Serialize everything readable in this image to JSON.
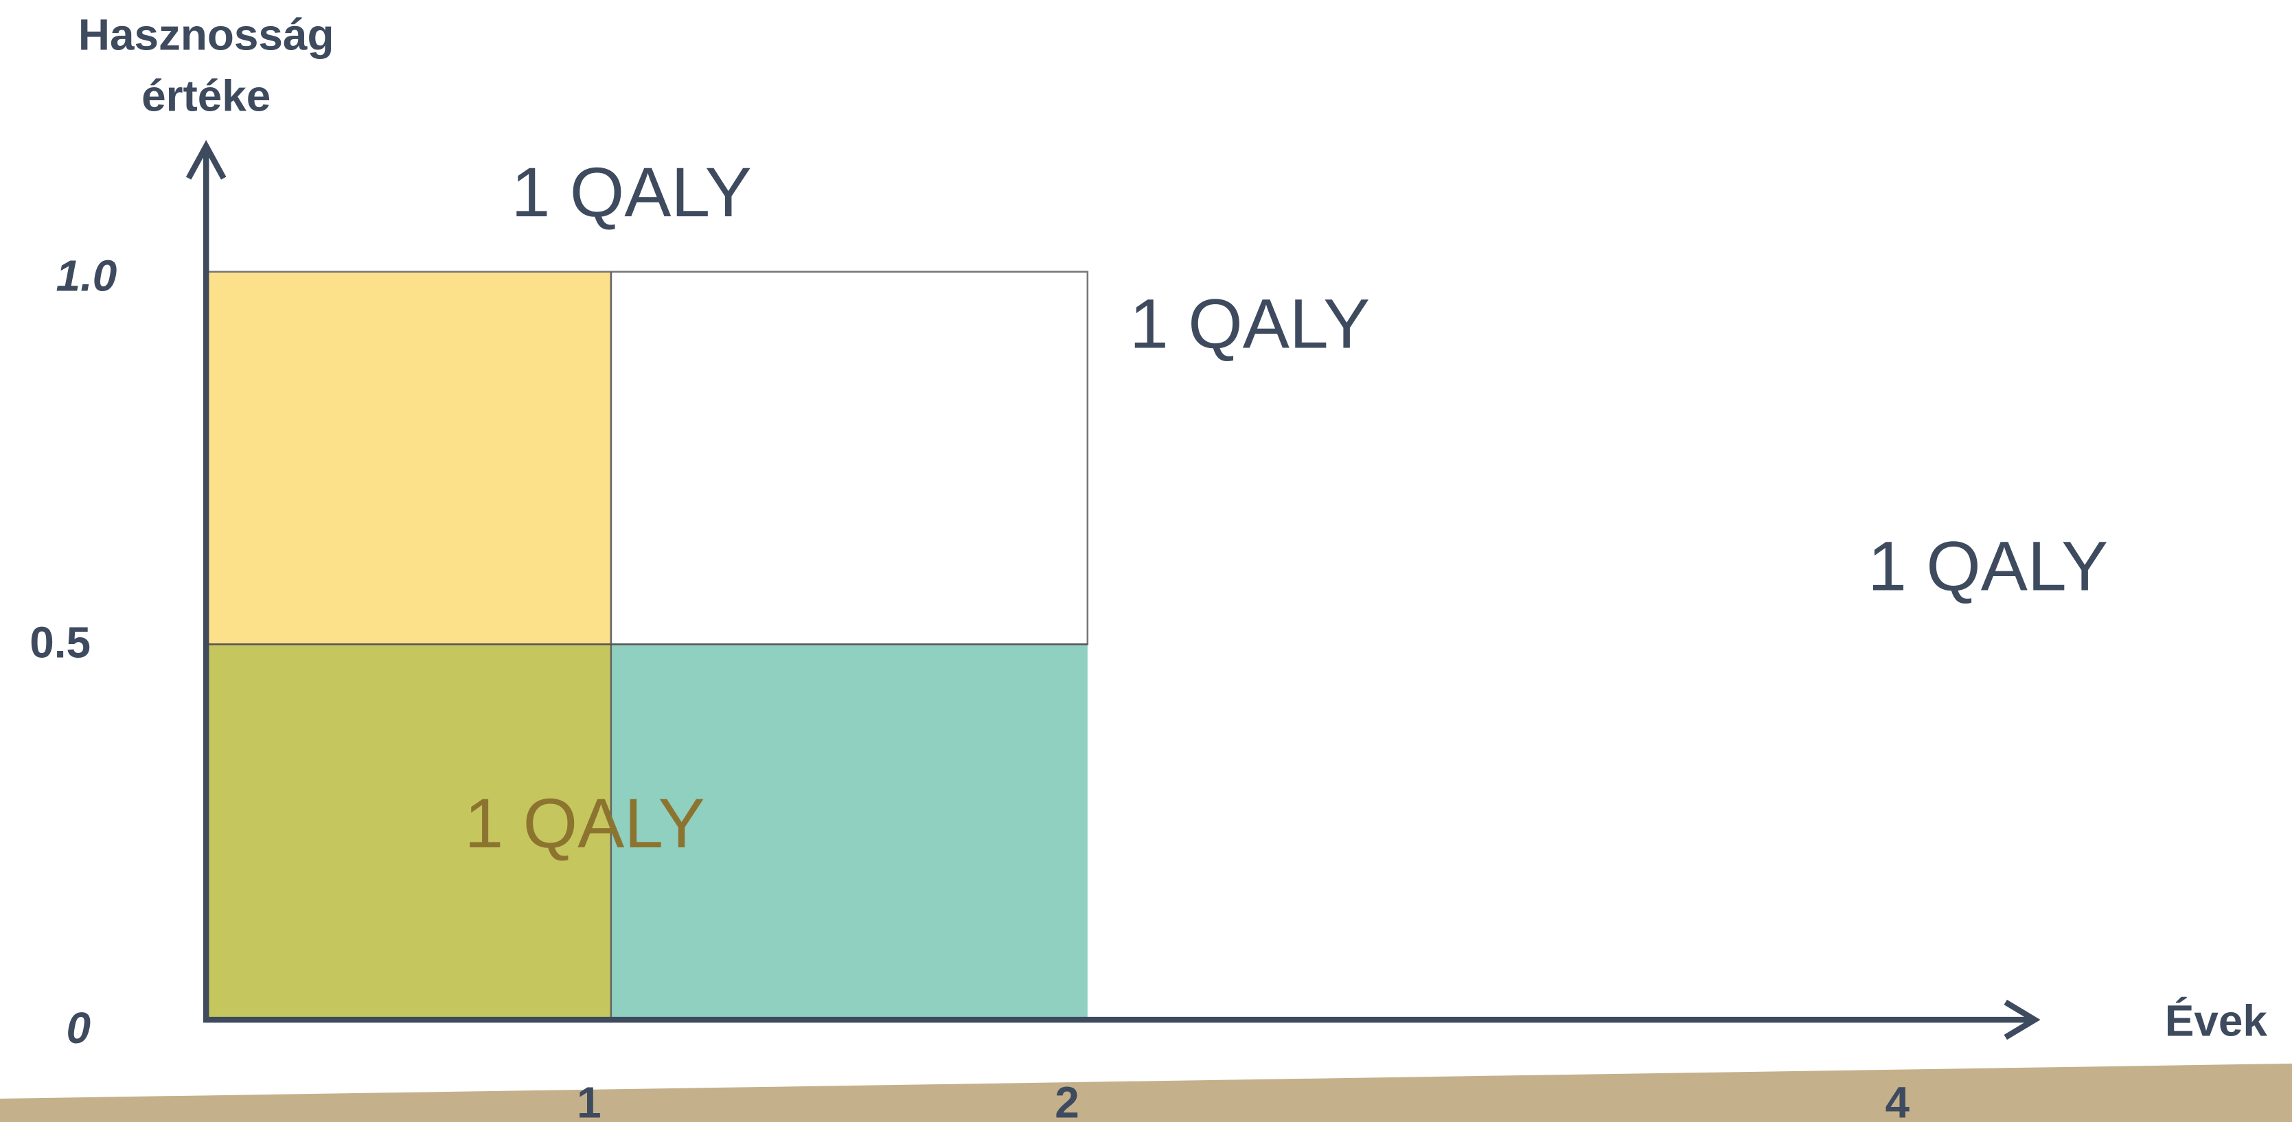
{
  "y_axis": {
    "label": [
      "Hasznosság",
      "értéke"
    ],
    "ticks": [
      "1.0",
      "0.5",
      "0"
    ]
  },
  "x_axis": {
    "label": "Évek",
    "ticks": [
      "1",
      "2",
      "4"
    ]
  },
  "annotations": [
    "1 QALY",
    "1 QALY",
    "1 QALY",
    "1 QALY"
  ]
}
